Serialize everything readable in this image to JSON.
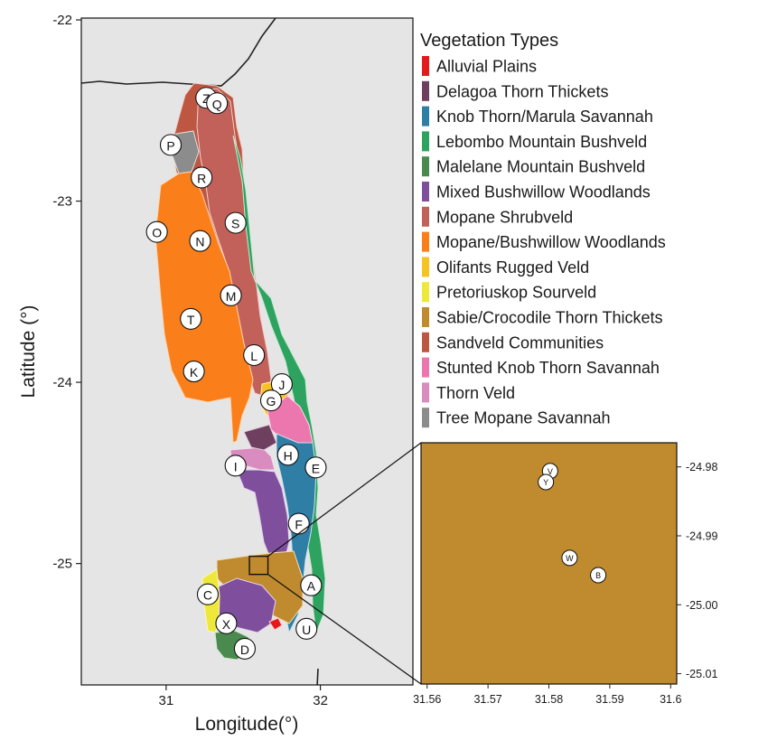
{
  "chart_data": {
    "type": "map",
    "main_map": {
      "xlabel": "Longitude(°)",
      "ylabel": "Latitude (°)",
      "xlim": [
        30.45,
        32.6
      ],
      "ylim": [
        -25.67,
        -21.99
      ],
      "x_ticks": [
        31,
        32
      ],
      "x_tick_labels": [
        "31",
        "32"
      ],
      "y_ticks": [
        -22,
        -23,
        -24,
        -25
      ],
      "y_tick_labels": [
        "-22",
        "-23",
        "-24",
        "-25"
      ],
      "inset_box": {
        "lon": [
          31.54,
          31.66
        ],
        "lat": [
          -25.06,
          -24.96
        ]
      },
      "sites": [
        {
          "label": "Z",
          "lon": 31.26,
          "lat": -22.43
        },
        {
          "label": "Q",
          "lon": 31.33,
          "lat": -22.46
        },
        {
          "label": "P",
          "lon": 31.03,
          "lat": -22.69
        },
        {
          "label": "R",
          "lon": 31.23,
          "lat": -22.87
        },
        {
          "label": "S",
          "lon": 31.45,
          "lat": -23.12
        },
        {
          "label": "O",
          "lon": 30.94,
          "lat": -23.17
        },
        {
          "label": "N",
          "lon": 31.22,
          "lat": -23.22
        },
        {
          "label": "M",
          "lon": 31.42,
          "lat": -23.52
        },
        {
          "label": "T",
          "lon": 31.16,
          "lat": -23.65
        },
        {
          "label": "L",
          "lon": 31.57,
          "lat": -23.85
        },
        {
          "label": "K",
          "lon": 31.18,
          "lat": -23.94
        },
        {
          "label": "J",
          "lon": 31.75,
          "lat": -24.01
        },
        {
          "label": "G",
          "lon": 31.68,
          "lat": -24.1
        },
        {
          "label": "H",
          "lon": 31.79,
          "lat": -24.4
        },
        {
          "label": "I",
          "lon": 31.45,
          "lat": -24.46
        },
        {
          "label": "E",
          "lon": 31.97,
          "lat": -24.47
        },
        {
          "label": "F",
          "lon": 31.86,
          "lat": -24.78
        },
        {
          "label": "A",
          "lon": 31.94,
          "lat": -25.12
        },
        {
          "label": "C",
          "lon": 31.27,
          "lat": -25.17
        },
        {
          "label": "X",
          "lon": 31.39,
          "lat": -25.33
        },
        {
          "label": "U",
          "lon": 31.91,
          "lat": -25.36
        },
        {
          "label": "D",
          "lon": 31.51,
          "lat": -25.47
        }
      ]
    },
    "inset_map": {
      "xlim": [
        31.559,
        31.601
      ],
      "ylim": [
        -25.0115,
        -24.9765
      ],
      "x_ticks": [
        31.56,
        31.57,
        31.58,
        31.59,
        31.6
      ],
      "x_tick_labels": [
        "31.56",
        "31.57",
        "31.58",
        "31.59",
        "31.6"
      ],
      "y_ticks": [
        -24.98,
        -24.99,
        -25.0,
        -25.01
      ],
      "y_tick_labels": [
        "-24.98",
        "-24.99",
        "-25.00",
        "-25.01"
      ],
      "fill": "#c08a2e",
      "sites": [
        {
          "label": "V",
          "lon": 31.5802,
          "lat": -24.9806
        },
        {
          "label": "Y",
          "lon": 31.5795,
          "lat": -24.9822
        },
        {
          "label": "W",
          "lon": 31.5834,
          "lat": -24.9932
        },
        {
          "label": "B",
          "lon": 31.5881,
          "lat": -24.9957
        }
      ]
    },
    "legend": {
      "title": "Vegetation Types",
      "placement": "right",
      "entries": [
        {
          "label": "Alluvial Plains",
          "color": "#e41a1c"
        },
        {
          "label": "Delagoa Thorn Thickets",
          "color": "#6e3f5f"
        },
        {
          "label": "Knob Thorn/Marula Savannah",
          "color": "#2f7ea6"
        },
        {
          "label": "Lebombo Mountain Bushveld",
          "color": "#2ea25f"
        },
        {
          "label": "Malelane Mountain Bushveld",
          "color": "#4a8a4e"
        },
        {
          "label": "Mixed Bushwillow Woodlands",
          "color": "#7f4f9e"
        },
        {
          "label": "Mopane Shrubveld",
          "color": "#c2615a"
        },
        {
          "label": "Mopane/Bushwillow Woodlands",
          "color": "#fa7f1a"
        },
        {
          "label": "Olifants Rugged Veld",
          "color": "#f6c324"
        },
        {
          "label": "Pretoriuskop Sourveld",
          "color": "#eee83a"
        },
        {
          "label": "Sabie/Crocodile Thorn Thickets",
          "color": "#c08a2e"
        },
        {
          "label": "Sandveld Communities",
          "color": "#bd5742"
        },
        {
          "label": "Stunted Knob Thorn Savannah",
          "color": "#ec77ae"
        },
        {
          "label": "Thorn Veld",
          "color": "#d88cbf"
        },
        {
          "label": "Tree Mopane Savannah",
          "color": "#8c8c8c"
        }
      ]
    },
    "background": "#e5e5e5",
    "border_color": "#222222"
  }
}
